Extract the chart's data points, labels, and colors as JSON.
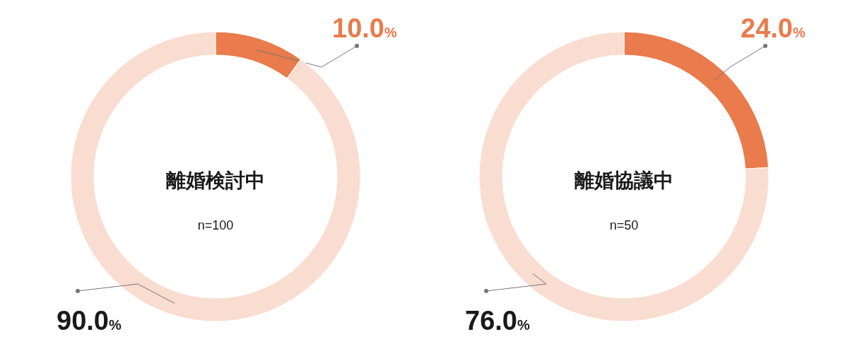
{
  "chart_data": [
    {
      "type": "donut",
      "title": "離婚検討中",
      "annotations": [
        "n=100"
      ],
      "categories": [
        null,
        null
      ],
      "values": [
        10.0,
        90.0
      ],
      "colors": [
        "#e97b4c",
        "#f9ddd0"
      ],
      "value_labels": [
        "10.0%",
        "90.0%"
      ]
    },
    {
      "type": "donut",
      "title": "離婚協議中",
      "annotations": [
        "n=50"
      ],
      "categories": [
        null,
        null
      ],
      "values": [
        24.0,
        76.0
      ],
      "colors": [
        "#e97b4c",
        "#f9ddd0"
      ],
      "value_labels": [
        "24.0%",
        "76.0%"
      ]
    }
  ]
}
